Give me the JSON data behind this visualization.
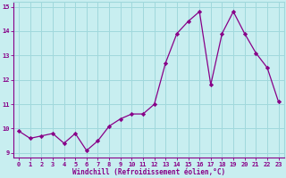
{
  "x": [
    0,
    1,
    2,
    3,
    4,
    5,
    6,
    7,
    8,
    9,
    10,
    11,
    12,
    13,
    14,
    15,
    16,
    17,
    18,
    19,
    20,
    21,
    22,
    23
  ],
  "y": [
    9.9,
    9.6,
    9.7,
    9.8,
    9.4,
    9.8,
    9.1,
    9.5,
    10.1,
    10.4,
    10.6,
    10.6,
    11.0,
    12.7,
    13.9,
    14.4,
    14.8,
    11.8,
    13.9,
    14.8,
    13.9,
    13.1,
    12.5,
    11.1
  ],
  "line_color": "#880088",
  "marker": "D",
  "marker_size": 2.2,
  "xlabel": "Windchill (Refroidissement éolien,°C)",
  "xlim": [
    -0.5,
    23.5
  ],
  "ylim": [
    8.8,
    15.2
  ],
  "yticks": [
    9,
    10,
    11,
    12,
    13,
    14,
    15
  ],
  "xticks": [
    0,
    1,
    2,
    3,
    4,
    5,
    6,
    7,
    8,
    9,
    10,
    11,
    12,
    13,
    14,
    15,
    16,
    17,
    18,
    19,
    20,
    21,
    22,
    23
  ],
  "bg_color": "#c8eef0",
  "grid_color": "#a0d8dc",
  "label_color": "#880088",
  "font_family": "monospace",
  "tick_fontsize": 5.0,
  "xlabel_fontsize": 5.5
}
